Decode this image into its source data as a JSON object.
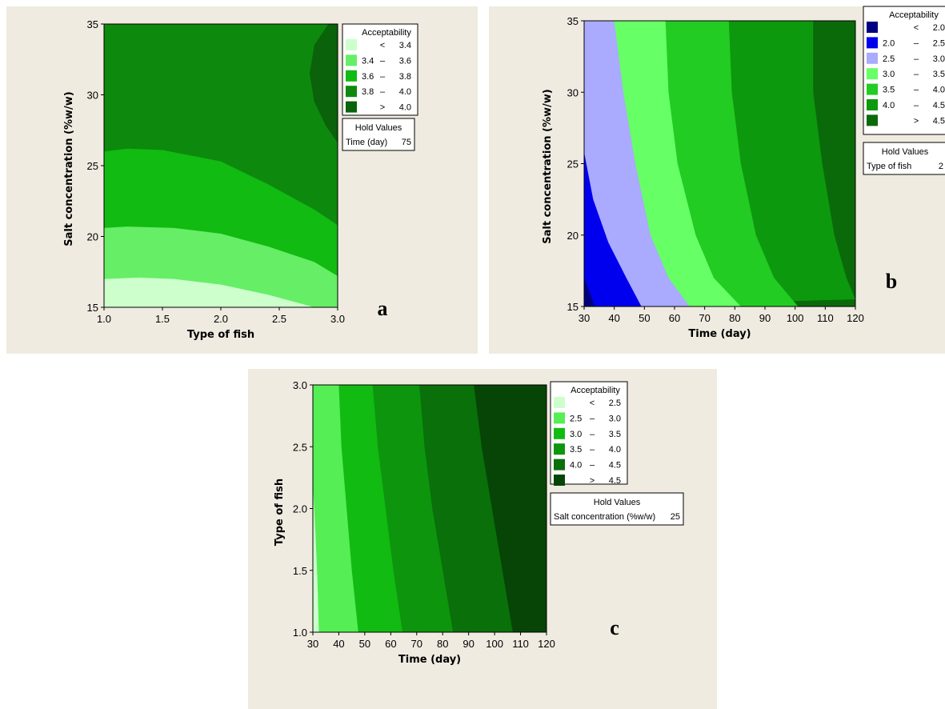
{
  "chart_data": [
    {
      "type": "contour",
      "panel_label": "a",
      "xlabel": "Type of fish",
      "ylabel": "Salt concentration (%w/w)",
      "xlim": [
        1.0,
        3.0
      ],
      "ylim": [
        15,
        35
      ],
      "xticks": [
        "1.0",
        "1.5",
        "2.0",
        "2.5",
        "3.0"
      ],
      "yticks": [
        "15",
        "20",
        "25",
        "30",
        "35"
      ],
      "legend_title": "Acceptability",
      "legend": [
        {
          "lo": "",
          "sep": "<",
          "hi": "3.4",
          "color": "#ccffcc"
        },
        {
          "lo": "3.4",
          "sep": "–",
          "hi": "3.6",
          "color": "#66ee66"
        },
        {
          "lo": "3.6",
          "sep": "–",
          "hi": "3.8",
          "color": "#11bb11"
        },
        {
          "lo": "3.8",
          "sep": "–",
          "hi": "4.0",
          "color": "#0d8a0d"
        },
        {
          "lo": "",
          "sep": ">",
          "hi": "4.0",
          "color": "#0a620a"
        }
      ],
      "hold_title": "Hold Values",
      "hold_label": "Time (day)",
      "hold_value": "75",
      "boundaries": [
        [
          [
            1.0,
            17.0
          ],
          [
            1.3,
            17.1
          ],
          [
            1.6,
            17.0
          ],
          [
            2.0,
            16.6
          ],
          [
            2.4,
            15.9
          ],
          [
            2.8,
            15.0
          ]
        ],
        [
          [
            1.0,
            20.6
          ],
          [
            1.2,
            20.7
          ],
          [
            1.6,
            20.6
          ],
          [
            2.0,
            20.2
          ],
          [
            2.4,
            19.3
          ],
          [
            2.8,
            18.2
          ],
          [
            3.0,
            17.2
          ]
        ],
        [
          [
            1.0,
            26.0
          ],
          [
            1.2,
            26.2
          ],
          [
            1.5,
            26.1
          ],
          [
            2.0,
            25.3
          ],
          [
            2.4,
            23.7
          ],
          [
            2.8,
            21.9
          ],
          [
            3.0,
            20.8
          ]
        ],
        [
          [
            2.92,
            35.0
          ],
          [
            2.8,
            33.5
          ],
          [
            2.76,
            31.5
          ],
          [
            2.8,
            29.5
          ],
          [
            2.9,
            27.8
          ],
          [
            3.0,
            26.6
          ]
        ]
      ]
    },
    {
      "type": "contour",
      "panel_label": "b",
      "xlabel": "Time (day)",
      "ylabel": "Salt concentration (%w/w)",
      "xlim": [
        30,
        120
      ],
      "ylim": [
        15,
        35
      ],
      "xticks": [
        "30",
        "40",
        "50",
        "60",
        "70",
        "80",
        "90",
        "100",
        "110",
        "120"
      ],
      "yticks": [
        "15",
        "20",
        "25",
        "30",
        "35"
      ],
      "legend_title": "Acceptability",
      "legend": [
        {
          "lo": "",
          "sep": "<",
          "hi": "2.0",
          "color": "#000080"
        },
        {
          "lo": "2.0",
          "sep": "–",
          "hi": "2.5",
          "color": "#0000ee"
        },
        {
          "lo": "2.5",
          "sep": "–",
          "hi": "3.0",
          "color": "#aaaaff"
        },
        {
          "lo": "3.0",
          "sep": "–",
          "hi": "3.5",
          "color": "#66ff66"
        },
        {
          "lo": "3.5",
          "sep": "–",
          "hi": "4.0",
          "color": "#22cc22"
        },
        {
          "lo": "4.0",
          "sep": "–",
          "hi": "4.5",
          "color": "#0d990d"
        },
        {
          "lo": "",
          "sep": ">",
          "hi": "4.5",
          "color": "#0a6a0a"
        }
      ],
      "hold_title": "Hold Values",
      "hold_label": "Type of fish",
      "hold_value": "2",
      "boundaries": [
        [
          [
            30,
            17.0
          ],
          [
            32,
            15.9
          ],
          [
            33.5,
            15.0
          ]
        ],
        [
          [
            30,
            25.8
          ],
          [
            33,
            22.5
          ],
          [
            38,
            19.5
          ],
          [
            44,
            17.0
          ],
          [
            49,
            15.0
          ]
        ],
        [
          [
            40,
            35.0
          ],
          [
            43,
            30.0
          ],
          [
            47,
            25.0
          ],
          [
            52,
            20.0
          ],
          [
            58,
            17.0
          ],
          [
            65,
            15.0
          ]
        ],
        [
          [
            57,
            35.0
          ],
          [
            58,
            30.0
          ],
          [
            61,
            25.0
          ],
          [
            67,
            20.0
          ],
          [
            73,
            17.0
          ],
          [
            82,
            15.0
          ]
        ],
        [
          [
            78,
            35.0
          ],
          [
            79,
            30.0
          ],
          [
            82,
            25.0
          ],
          [
            87,
            20.0
          ],
          [
            93,
            17.0
          ],
          [
            101,
            15.0
          ]
        ],
        [
          [
            106,
            35.0
          ],
          [
            106,
            30.0
          ],
          [
            109,
            25.0
          ],
          [
            113,
            20.0
          ],
          [
            117,
            17.0
          ],
          [
            120,
            15.5
          ]
        ]
      ]
    },
    {
      "type": "contour",
      "panel_label": "c",
      "xlabel": "Time (day)",
      "ylabel": "Type of fish",
      "xlim": [
        30,
        120
      ],
      "ylim": [
        1.0,
        3.0
      ],
      "xticks": [
        "30",
        "40",
        "50",
        "60",
        "70",
        "80",
        "90",
        "100",
        "110",
        "120"
      ],
      "yticks": [
        "1.0",
        "1.5",
        "2.0",
        "2.5",
        "3.0"
      ],
      "legend_title": "Acceptability",
      "legend": [
        {
          "lo": "",
          "sep": "<",
          "hi": "2.5",
          "color": "#ccffcc"
        },
        {
          "lo": "2.5",
          "sep": "–",
          "hi": "3.0",
          "color": "#55ee55"
        },
        {
          "lo": "3.0",
          "sep": "–",
          "hi": "3.5",
          "color": "#11bb11"
        },
        {
          "lo": "3.5",
          "sep": "–",
          "hi": "4.0",
          "color": "#0d960d"
        },
        {
          "lo": "4.0",
          "sep": "–",
          "hi": "4.5",
          "color": "#0a700a"
        },
        {
          "lo": "",
          "sep": ">",
          "hi": "4.5",
          "color": "#064506"
        }
      ],
      "hold_title": "Hold Values",
      "hold_label": "Salt concentration (%w/w)",
      "hold_value": "25",
      "boundaries": [
        [
          [
            30,
            2.2
          ],
          [
            31,
            1.8
          ],
          [
            31.8,
            1.4
          ],
          [
            32.3,
            1.0
          ]
        ],
        [
          [
            40,
            3.0
          ],
          [
            41,
            2.5
          ],
          [
            43,
            2.0
          ],
          [
            45,
            1.5
          ],
          [
            47.5,
            1.0
          ]
        ],
        [
          [
            53,
            3.0
          ],
          [
            55,
            2.5
          ],
          [
            58,
            2.0
          ],
          [
            61,
            1.5
          ],
          [
            64.5,
            1.0
          ]
        ],
        [
          [
            71,
            3.0
          ],
          [
            73,
            2.5
          ],
          [
            76,
            2.0
          ],
          [
            80,
            1.5
          ],
          [
            84,
            1.0
          ]
        ],
        [
          [
            92,
            3.0
          ],
          [
            95,
            2.5
          ],
          [
            99,
            2.0
          ],
          [
            103,
            1.5
          ],
          [
            107,
            1.0
          ]
        ]
      ]
    }
  ]
}
